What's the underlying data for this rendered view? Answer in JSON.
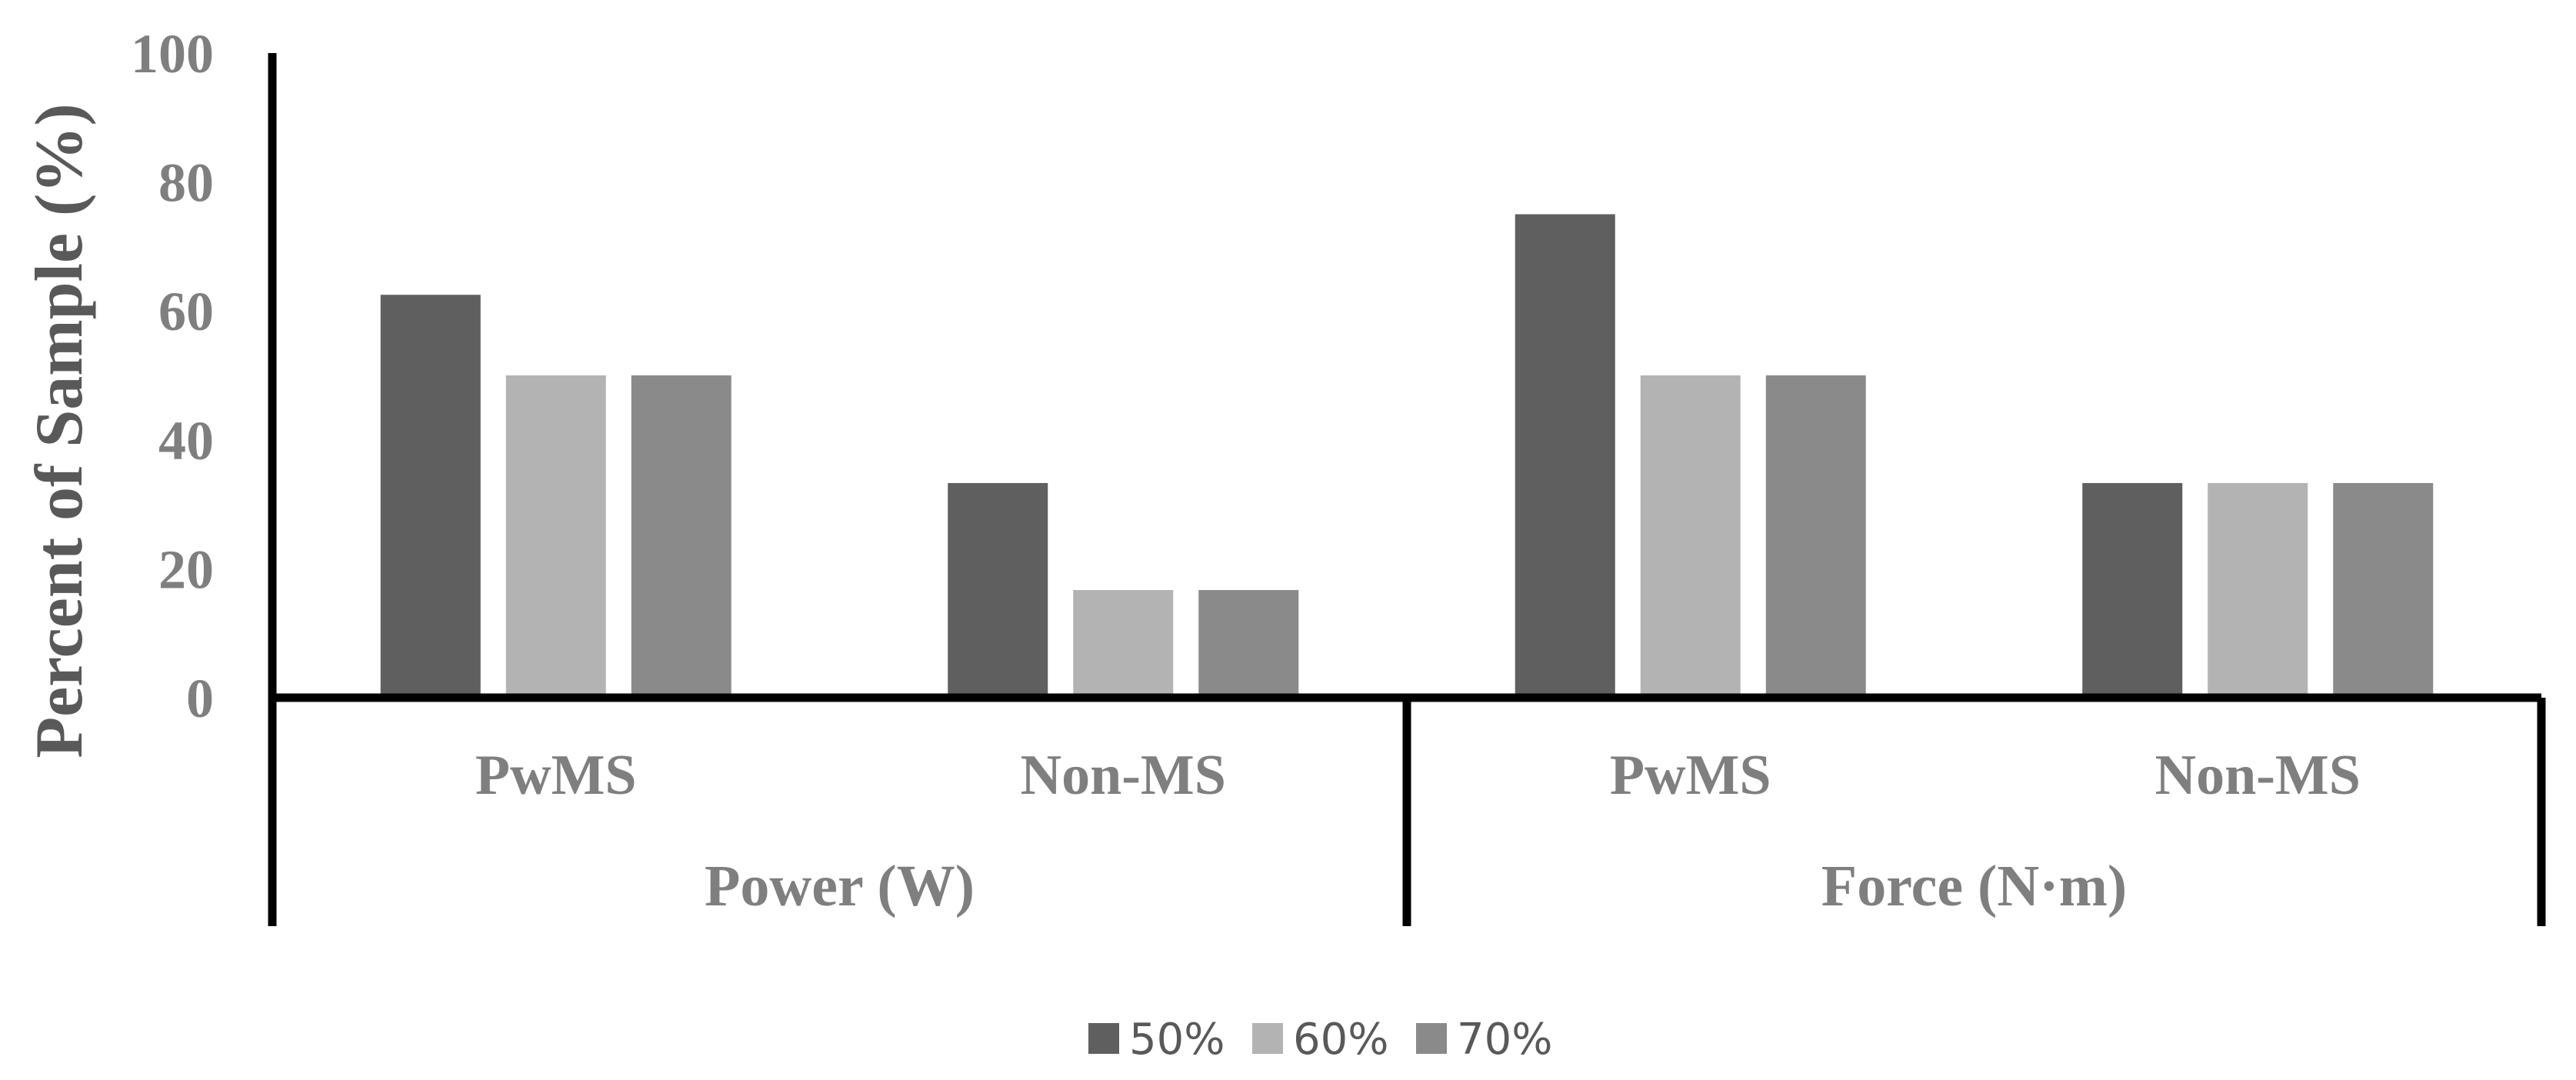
{
  "chart_data": {
    "type": "bar",
    "ylabel": "Percent of Sample (%)",
    "ylim": [
      0,
      100
    ],
    "yticks": [
      "0",
      "20",
      "40",
      "60",
      "80",
      "100"
    ],
    "grid": false,
    "legend_position": "bottom",
    "groups": [
      {
        "label": "Power (W)",
        "categories": [
          "PwMS",
          "Non-MS"
        ]
      },
      {
        "label": "Force (N·m)",
        "categories": [
          "PwMS",
          "Non-MS"
        ]
      }
    ],
    "categories": [
      "PwMS",
      "Non-MS",
      "PwMS",
      "Non-MS"
    ],
    "series": [
      {
        "name": "50%",
        "color": "#5f5f5f",
        "values": [
          62.5,
          33.3,
          75.0,
          33.3
        ]
      },
      {
        "name": "60%",
        "color": "#b3b3b3",
        "values": [
          50.0,
          16.7,
          50.0,
          33.3
        ]
      },
      {
        "name": "70%",
        "color": "#8a8a8a",
        "values": [
          50.0,
          16.7,
          50.0,
          33.3
        ]
      }
    ]
  }
}
